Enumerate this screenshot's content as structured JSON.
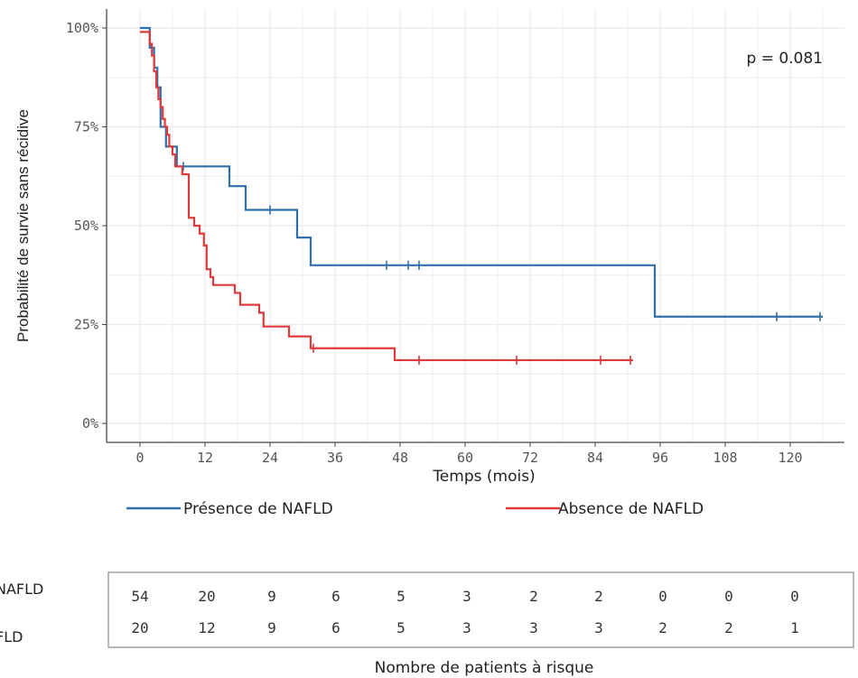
{
  "chart_data": {
    "type": "line",
    "subtype": "kaplan-meier",
    "xlabel": "Temps (mois)",
    "ylabel": "Probabilité de survie sans récidive",
    "xlim": [
      -2,
      128
    ],
    "ylim": [
      0,
      100
    ],
    "x_ticks": [
      0,
      12,
      24,
      36,
      48,
      60,
      72,
      84,
      96,
      108,
      120
    ],
    "x_tick_labels": [
      "0",
      "12",
      "24",
      "36",
      "48",
      "60",
      "72",
      "84",
      "96",
      "108",
      "120"
    ],
    "y_ticks": [
      0,
      25,
      50,
      75,
      100
    ],
    "y_tick_labels": [
      "0%",
      "25%",
      "50%",
      "75%",
      "100%"
    ],
    "grid": true,
    "annotation": "p = 0.081",
    "legend_placement": "bottom",
    "series": [
      {
        "name": "Présence de NAFLD",
        "color": "#2f6fac",
        "steps": [
          [
            0,
            100
          ],
          [
            1.8,
            95
          ],
          [
            2.6,
            90
          ],
          [
            3.2,
            85
          ],
          [
            3.8,
            75
          ],
          [
            4.8,
            70
          ],
          [
            5.5,
            70
          ],
          [
            6.8,
            65
          ],
          [
            16.5,
            60
          ],
          [
            19.5,
            54
          ],
          [
            29,
            47
          ],
          [
            31.5,
            40
          ],
          [
            95,
            27
          ],
          [
            126,
            27
          ]
        ],
        "censor_x": [
          8,
          24,
          45.5,
          49.5,
          51.5,
          117.5,
          125.5
        ]
      },
      {
        "name": "Absence de NAFLD",
        "color": "#e03a3a",
        "steps": [
          [
            0,
            99
          ],
          [
            1.8,
            96
          ],
          [
            2.2,
            93
          ],
          [
            2.6,
            89
          ],
          [
            3,
            85
          ],
          [
            3.4,
            82
          ],
          [
            3.8,
            80
          ],
          [
            4.2,
            77
          ],
          [
            4.6,
            75
          ],
          [
            5,
            73
          ],
          [
            5.4,
            70
          ],
          [
            6,
            68
          ],
          [
            6.5,
            65
          ],
          [
            7.8,
            63
          ],
          [
            9,
            52
          ],
          [
            10,
            50
          ],
          [
            11,
            48
          ],
          [
            11.8,
            45
          ],
          [
            12.3,
            39
          ],
          [
            13,
            37
          ],
          [
            13.5,
            35
          ],
          [
            17.5,
            33
          ],
          [
            18.5,
            30
          ],
          [
            22,
            28
          ],
          [
            22.8,
            24.5
          ],
          [
            27.5,
            22
          ],
          [
            31.5,
            19
          ],
          [
            47,
            16
          ],
          [
            91,
            16
          ]
        ],
        "censor_x": [
          32,
          51.5,
          69.5,
          85,
          90.5
        ]
      }
    ],
    "risk_table": {
      "title": "Nombre de patients à risque",
      "time_points": [
        0,
        12,
        24,
        36,
        48,
        60,
        72,
        84,
        96,
        108,
        120
      ],
      "rows": [
        {
          "label": "NAFLD",
          "values": [
            54,
            20,
            9,
            6,
            5,
            3,
            2,
            2,
            0,
            0,
            0
          ]
        },
        {
          "label": "FLD",
          "values": [
            20,
            12,
            9,
            6,
            5,
            3,
            3,
            3,
            2,
            2,
            1
          ]
        }
      ]
    }
  }
}
